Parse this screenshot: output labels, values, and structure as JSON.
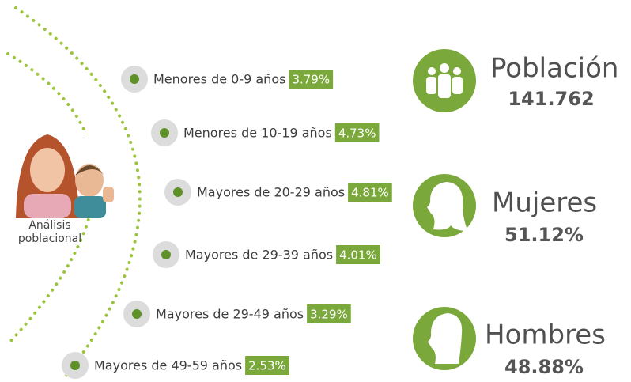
{
  "photo": {
    "caption_lines": [
      "Análisis",
      "poblacional"
    ]
  },
  "groups": [
    {
      "label": "Menores de 0-9 años",
      "percent": "3.79%"
    },
    {
      "label": "Menores de 10-19 años",
      "percent": "4.73%"
    },
    {
      "label": "Mayores de 20-29 años",
      "percent": "4.81%"
    },
    {
      "label": "Mayores de 29-39 años",
      "percent": "4.01%"
    },
    {
      "label": "Mayores de 29-49 años",
      "percent": "3.29%"
    },
    {
      "label": "Mayores de 49-59 años",
      "percent": "2.53%"
    }
  ],
  "stats": [
    {
      "title": "Población",
      "value": "141.762"
    },
    {
      "title": "Mujeres",
      "value": "51.12%"
    },
    {
      "title": "Hombres",
      "value": "48.88%"
    }
  ]
}
